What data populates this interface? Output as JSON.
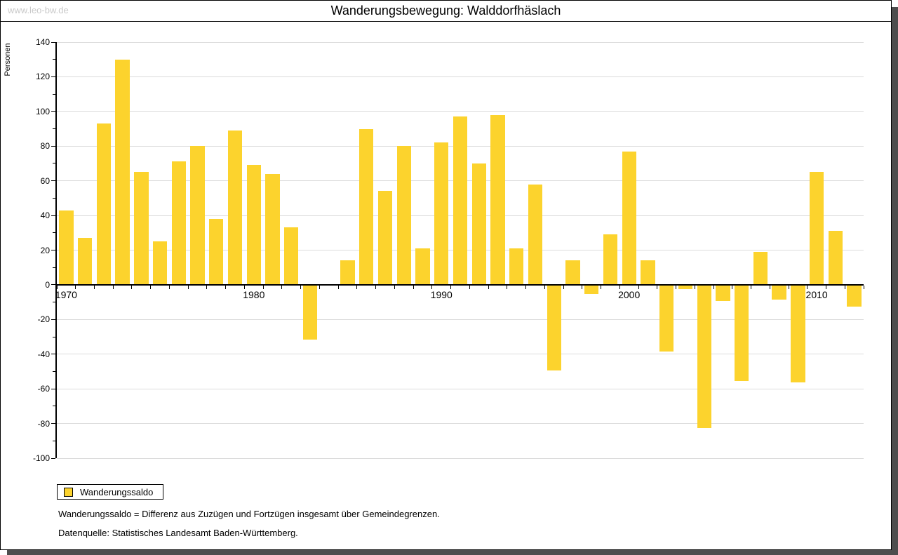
{
  "page": {
    "watermark": "www.leo-bw.de",
    "title": "Wanderungsbewegung: Walddorfhäslach"
  },
  "legend": {
    "items": [
      {
        "label": "Wanderungssaldo",
        "color": "#fcd32d"
      }
    ]
  },
  "footnotes": [
    "Wanderungssaldo = Differenz aus Zuzügen und Fortzügen insgesamt über Gemeindegrenzen.",
    "Datenquelle: Statistisches Landesamt Baden-Württemberg."
  ],
  "colors": {
    "bar": "#fcd32d",
    "grid": "#dbdbdb",
    "axis": "#000000",
    "watermark": "#c9c9c9",
    "shadow": "#4e4e4e"
  },
  "chart_data": {
    "type": "bar",
    "title": "Wanderungsbewegung: Walddorfhäslach",
    "xlabel": "",
    "ylabel": "Personen",
    "ylim": [
      -100,
      140
    ],
    "y_tick_step": 20,
    "y_minor_tick_step": 10,
    "grid": true,
    "legend_position": "bottom-left",
    "x_decade_labels": [
      "1970",
      "1980",
      "1990",
      "2000",
      "2010"
    ],
    "categories": [
      1970,
      1971,
      1972,
      1973,
      1974,
      1975,
      1976,
      1977,
      1978,
      1979,
      1980,
      1981,
      1982,
      1983,
      1984,
      1985,
      1986,
      1987,
      1988,
      1989,
      1990,
      1991,
      1992,
      1993,
      1994,
      1995,
      1996,
      1997,
      1998,
      1999,
      2000,
      2001,
      2002,
      2003,
      2004,
      2005,
      2006,
      2007,
      2008,
      2009,
      2010,
      2011,
      2012
    ],
    "series": [
      {
        "name": "Wanderungssaldo",
        "color": "#fcd32d",
        "values": [
          43,
          27,
          93,
          130,
          65,
          25,
          71,
          80,
          38,
          89,
          69,
          64,
          33,
          -31,
          0,
          14,
          90,
          54,
          80,
          21,
          82,
          97,
          70,
          98,
          21,
          58,
          -49,
          14,
          -5,
          29,
          77,
          14,
          -38,
          -2,
          -82,
          -9,
          -55,
          19,
          -8,
          -56,
          65,
          31,
          -12
        ]
      }
    ]
  }
}
